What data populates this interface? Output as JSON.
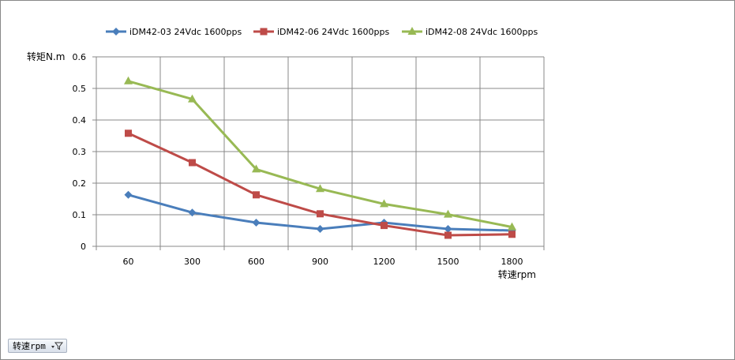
{
  "chart_data": {
    "type": "line",
    "categories": [
      "60",
      "300",
      "600",
      "900",
      "1200",
      "1500",
      "1800"
    ],
    "series": [
      {
        "name": "iDM42-03 24Vdc 1600pps",
        "color": "#4a7ebb",
        "marker": "diamond",
        "values": [
          0.163,
          0.107,
          0.075,
          0.055,
          0.075,
          0.055,
          0.05
        ]
      },
      {
        "name": "iDM42-06 24Vdc 1600pps",
        "color": "#be4b48",
        "marker": "square",
        "values": [
          0.358,
          0.265,
          0.163,
          0.103,
          0.066,
          0.035,
          0.038
        ]
      },
      {
        "name": "iDM42-08 24Vdc 1600pps",
        "color": "#98b954",
        "marker": "triangle",
        "values": [
          0.523,
          0.466,
          0.244,
          0.182,
          0.134,
          0.101,
          0.061
        ]
      }
    ],
    "yticks": [
      "0",
      "0.1",
      "0.2",
      "0.3",
      "0.4",
      "0.5",
      "0.6"
    ],
    "ylim": [
      0,
      0.6
    ],
    "ylabel": "转矩N.m",
    "xlabel": "转速rpm",
    "grid": true,
    "legend_position": "top"
  },
  "field_button": {
    "label": "转速rpm",
    "icon": "filter-dropdown-icon"
  }
}
